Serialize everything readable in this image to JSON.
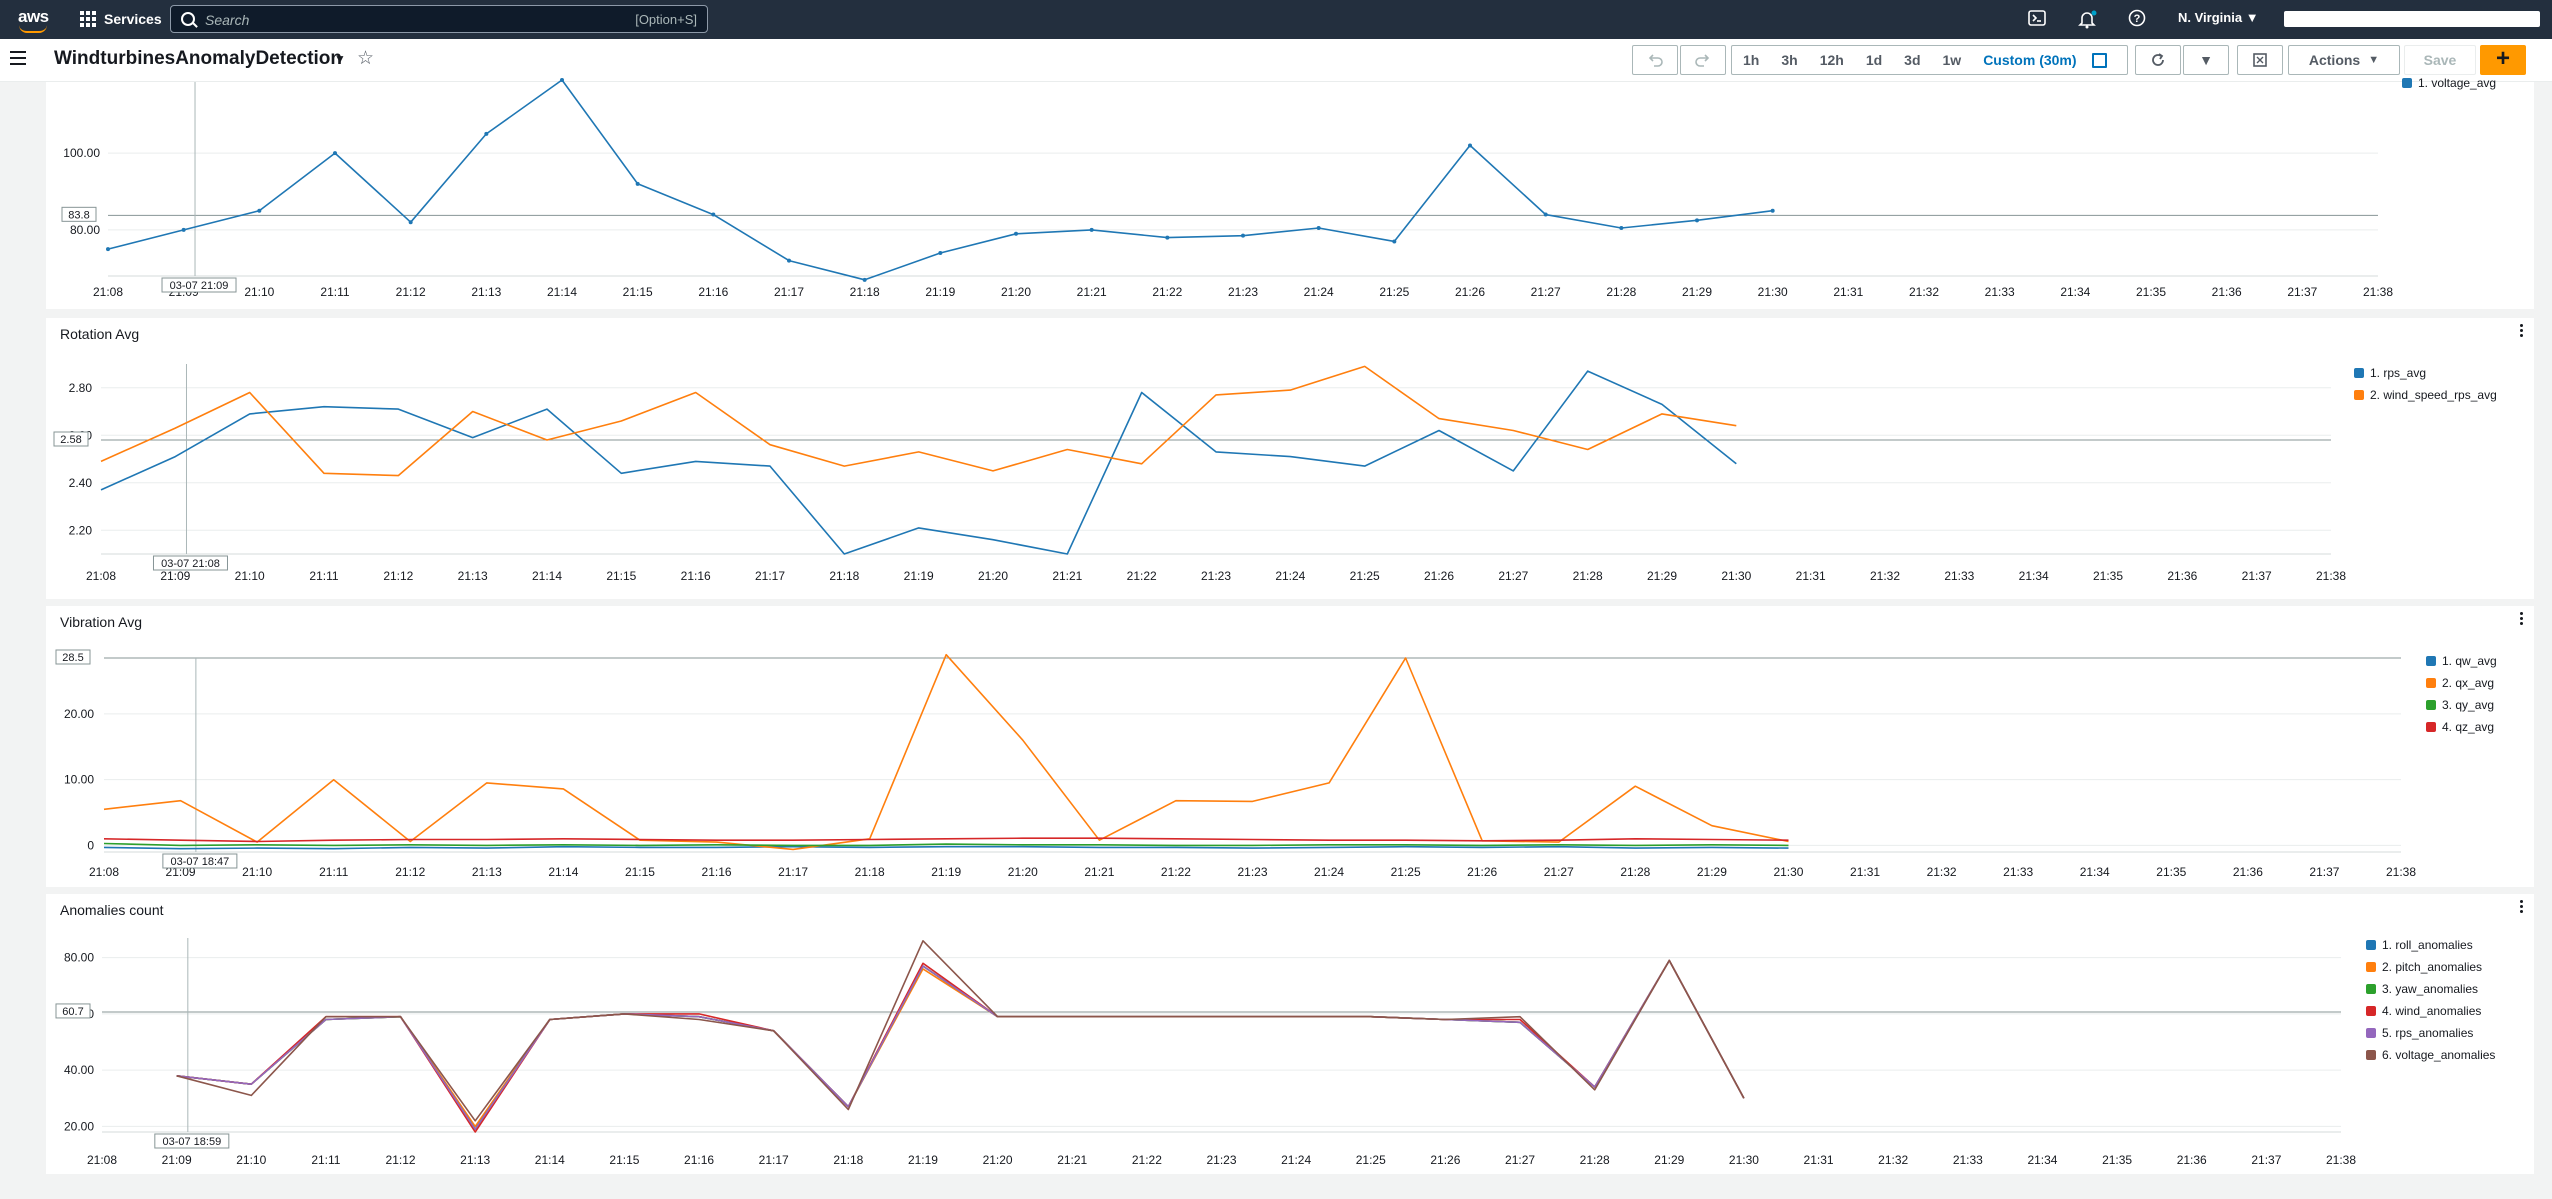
{
  "topnav": {
    "logo_text": "aws",
    "services_label": "Services",
    "search_placeholder": "Search",
    "search_shortcut": "[Option+S]",
    "region": "N. Virginia"
  },
  "dashboard": {
    "title": "WindturbinesAnomalyDetection",
    "time_ranges": [
      "1h",
      "3h",
      "12h",
      "1d",
      "3d",
      "1w"
    ],
    "custom_range": "Custom (30m)",
    "actions_label": "Actions",
    "save_label": "Save",
    "add_label": "+"
  },
  "x_ticks": [
    "21:08",
    "21:09",
    "21:10",
    "21:11",
    "21:12",
    "21:13",
    "21:14",
    "21:15",
    "21:16",
    "21:17",
    "21:18",
    "21:19",
    "21:20",
    "21:21",
    "21:22",
    "21:23",
    "21:24",
    "21:25",
    "21:26",
    "21:27",
    "21:28",
    "21:29",
    "21:30",
    "21:31",
    "21:32",
    "21:33",
    "21:34",
    "21:35",
    "21:36",
    "21:37",
    "21:38"
  ],
  "colors": {
    "blue": "#1f77b4",
    "orange": "#ff7f0e",
    "green": "#2ca02c",
    "red": "#d62728",
    "purple": "#9467bd",
    "brown": "#8c564b"
  },
  "chart_data": [
    {
      "type": "line",
      "title": "",
      "ylim": [
        68,
        118
      ],
      "y_ticks": [
        "80.00",
        "100.00"
      ],
      "y_tick_values": [
        80,
        100
      ],
      "ref_value": 83.8,
      "ref_label": "83.8",
      "cursor_label": "03-07 21:09",
      "cursor_x": 1.15,
      "series": [
        {
          "name": "1. voltage_avg",
          "color": "#1f77b4",
          "x": [
            0,
            1,
            2,
            3,
            4,
            5,
            6,
            7,
            8,
            9,
            10,
            11,
            12,
            13,
            14,
            15,
            16,
            17,
            18,
            19,
            20,
            21,
            22
          ],
          "values": [
            75,
            80,
            85,
            100,
            82,
            105,
            121,
            92,
            84,
            72,
            67,
            74,
            79,
            80,
            78,
            78.5,
            80.5,
            77,
            102,
            84,
            80.5,
            82.5,
            85
          ]
        }
      ]
    },
    {
      "type": "line",
      "title": "Rotation Avg",
      "ylim": [
        2.1,
        2.9
      ],
      "y_ticks": [
        "2.20",
        "2.40",
        "2.60",
        "2.80"
      ],
      "y_tick_values": [
        2.2,
        2.4,
        2.6,
        2.8
      ],
      "ref_value": 2.58,
      "ref_label": "2.58",
      "cursor_label": "03-07 21:08",
      "cursor_x": 1.15,
      "series": [
        {
          "name": "1. rps_avg",
          "color": "#1f77b4",
          "x": [
            0,
            1,
            2,
            3,
            4,
            5,
            6,
            7,
            8,
            9,
            10,
            11,
            12,
            13,
            14,
            15,
            16,
            17,
            18,
            19,
            20,
            21,
            22
          ],
          "values": [
            2.37,
            2.51,
            2.69,
            2.72,
            2.71,
            2.59,
            2.71,
            2.44,
            2.49,
            2.47,
            2.1,
            2.21,
            2.16,
            2.1,
            2.78,
            2.53,
            2.51,
            2.47,
            2.62,
            2.45,
            2.87,
            2.73,
            2.48
          ]
        },
        {
          "name": "2. wind_speed_rps_avg",
          "color": "#ff7f0e",
          "x": [
            0,
            1,
            2,
            3,
            4,
            5,
            6,
            7,
            8,
            9,
            10,
            11,
            12,
            13,
            14,
            15,
            16,
            17,
            18,
            19,
            20,
            21,
            22
          ],
          "values": [
            2.49,
            2.63,
            2.78,
            2.44,
            2.43,
            2.7,
            2.58,
            2.66,
            2.78,
            2.56,
            2.47,
            2.53,
            2.45,
            2.54,
            2.48,
            2.77,
            2.79,
            2.89,
            2.67,
            2.62,
            2.54,
            2.69,
            2.64
          ]
        }
      ]
    },
    {
      "type": "line",
      "title": "Vibration Avg",
      "ylim": [
        -1,
        28.5
      ],
      "y_ticks": [
        "0",
        "10.00",
        "20.00"
      ],
      "y_tick_values": [
        0,
        10,
        20
      ],
      "ref_value": 28.5,
      "ref_label": "28.5",
      "cursor_label": "03-07 18:47",
      "cursor_x": 1.2,
      "series": [
        {
          "name": "1. qw_avg",
          "color": "#1f77b4",
          "x": [
            0,
            1,
            2,
            3,
            4,
            5,
            6,
            7,
            8,
            9,
            10,
            11,
            12,
            13,
            14,
            15,
            16,
            17,
            18,
            19,
            20,
            21,
            22
          ],
          "values": [
            -0.3,
            -0.5,
            -0.4,
            -0.5,
            -0.3,
            -0.4,
            -0.2,
            -0.3,
            -0.3,
            -0.2,
            -0.3,
            -0.2,
            -0.2,
            -0.3,
            -0.3,
            -0.4,
            -0.3,
            -0.2,
            -0.3,
            -0.2,
            -0.4,
            -0.3,
            -0.4
          ]
        },
        {
          "name": "2. qx_avg",
          "color": "#ff7f0e",
          "x": [
            0,
            1,
            2,
            3,
            4,
            5,
            6,
            7,
            8,
            9,
            10,
            11,
            12,
            13,
            14,
            15,
            16,
            17,
            18,
            19,
            20,
            21,
            22
          ],
          "values": [
            5.5,
            6.8,
            0.5,
            10,
            0.6,
            9.5,
            8.6,
            0.8,
            0.5,
            -0.6,
            1,
            29,
            16,
            0.8,
            6.8,
            6.7,
            9.5,
            28.5,
            0.7,
            0.5,
            9,
            3,
            0.6
          ]
        },
        {
          "name": "3. qy_avg",
          "color": "#2ca02c",
          "x": [
            0,
            1,
            2,
            3,
            4,
            5,
            6,
            7,
            8,
            9,
            10,
            11,
            12,
            13,
            14,
            15,
            16,
            17,
            18,
            19,
            20,
            21,
            22
          ],
          "values": [
            0.3,
            0,
            0.1,
            0,
            0.1,
            0,
            0.1,
            0,
            0.1,
            0,
            0,
            0.2,
            0.1,
            0.1,
            0,
            0,
            0.1,
            0.1,
            0,
            0.1,
            0,
            0.1,
            0
          ]
        },
        {
          "name": "4. qz_avg",
          "color": "#d62728",
          "x": [
            0,
            1,
            2,
            3,
            4,
            5,
            6,
            7,
            8,
            9,
            10,
            11,
            12,
            13,
            14,
            15,
            16,
            17,
            18,
            19,
            20,
            21,
            22
          ],
          "values": [
            1,
            0.8,
            0.6,
            0.8,
            0.9,
            0.9,
            1,
            0.9,
            0.8,
            0.8,
            0.9,
            1,
            1.1,
            1.1,
            1,
            0.9,
            0.8,
            0.8,
            0.7,
            0.8,
            1,
            0.9,
            0.8
          ]
        }
      ]
    },
    {
      "type": "line",
      "title": "Anomalies count",
      "ylim": [
        18,
        87
      ],
      "y_ticks": [
        "20.00",
        "40.00",
        "60.00",
        "80.00"
      ],
      "y_tick_values": [
        20,
        40,
        60,
        80
      ],
      "ref_value": 60.7,
      "ref_label": "60.7",
      "cursor_label": "03-07 18:59",
      "cursor_x": 1.15,
      "series": [
        {
          "name": "1. roll_anomalies",
          "color": "#1f77b4",
          "x": [
            1,
            2,
            3,
            4,
            5,
            6,
            7,
            8,
            9,
            10,
            11,
            12,
            13,
            14,
            15,
            16,
            17,
            18,
            19,
            20,
            21,
            22
          ],
          "values": [
            38,
            35,
            58,
            59,
            19,
            58,
            60,
            59,
            54,
            27,
            77,
            59,
            59,
            59,
            59,
            59,
            59,
            58,
            57,
            34,
            79,
            30
          ]
        },
        {
          "name": "2. pitch_anomalies",
          "color": "#ff7f0e",
          "x": [
            1,
            2,
            3,
            4,
            5,
            6,
            7,
            8,
            9,
            10,
            11,
            12,
            13,
            14,
            15,
            16,
            17,
            18,
            19,
            20,
            21,
            22
          ],
          "values": [
            38,
            35,
            58,
            59,
            20,
            58,
            60,
            59,
            54,
            27,
            76,
            59,
            59,
            59,
            59,
            59,
            59,
            58,
            57,
            34,
            79,
            30
          ]
        },
        {
          "name": "3. yaw_anomalies",
          "color": "#2ca02c",
          "x": [
            1,
            2,
            3,
            4,
            5,
            6,
            7,
            8,
            9,
            10,
            11,
            12,
            13,
            14,
            15,
            16,
            17,
            18,
            19,
            20,
            21,
            22
          ],
          "values": [
            38,
            35,
            58,
            59,
            19,
            58,
            60,
            59,
            54,
            27,
            77,
            59,
            59,
            59,
            59,
            59,
            59,
            58,
            57,
            34,
            79,
            30
          ]
        },
        {
          "name": "4. wind_anomalies",
          "color": "#d62728",
          "x": [
            1,
            2,
            3,
            4,
            5,
            6,
            7,
            8,
            9,
            10,
            11,
            12,
            13,
            14,
            15,
            16,
            17,
            18,
            19,
            20,
            21,
            22
          ],
          "values": [
            38,
            35,
            59,
            59,
            18,
            58,
            60,
            60,
            54,
            27,
            78,
            59,
            59,
            59,
            59,
            59,
            59,
            58,
            58,
            34,
            79,
            30
          ]
        },
        {
          "name": "5. rps_anomalies",
          "color": "#9467bd",
          "x": [
            1,
            2,
            3,
            4,
            5,
            6,
            7,
            8,
            9,
            10,
            11,
            12,
            13,
            14,
            15,
            16,
            17,
            18,
            19,
            20,
            21,
            22
          ],
          "values": [
            38,
            35,
            58,
            59,
            19,
            58,
            60,
            59,
            54,
            27,
            77,
            59,
            59,
            59,
            59,
            59,
            59,
            58,
            57,
            34,
            79,
            30
          ]
        },
        {
          "name": "6. voltage_anomalies",
          "color": "#8c564b",
          "x": [
            1,
            2,
            3,
            4,
            5,
            6,
            7,
            8,
            9,
            10,
            11,
            12,
            13,
            14,
            15,
            16,
            17,
            18,
            19,
            20,
            21,
            22
          ],
          "values": [
            38,
            31,
            59,
            59,
            22,
            58,
            60,
            58,
            54,
            26,
            86,
            59,
            59,
            59,
            59,
            59,
            59,
            58,
            59,
            33,
            79,
            30
          ]
        }
      ]
    }
  ]
}
